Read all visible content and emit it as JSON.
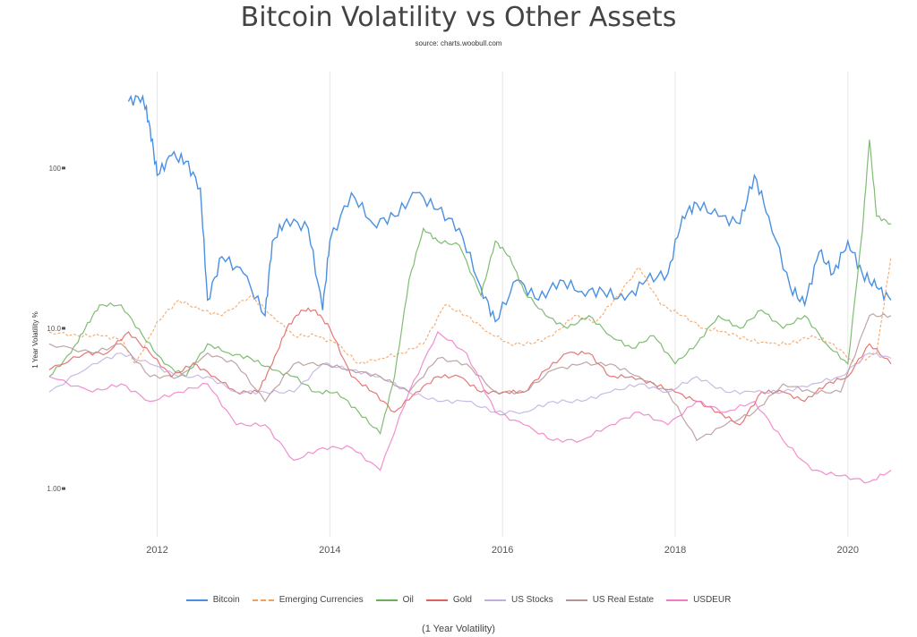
{
  "title": "Bitcoin Volatility vs Other Assets",
  "subtitle": "source: charts.woobull.com",
  "chart_data": {
    "type": "line",
    "title": "Bitcoin Volatility vs Other Assets",
    "subtitle": "source: charts.woobull.com",
    "xlabel": "(1 Year Volatility)",
    "ylabel": "1 Year Volatility %",
    "yscale": "log",
    "ylim": [
      0.5,
      400
    ],
    "xlim": [
      "2010-10",
      "2020-07"
    ],
    "x_tick_labels": [
      "2012",
      "2014",
      "2016",
      "2018",
      "2020"
    ],
    "y_tick_labels": [
      "1.00",
      "10.0",
      "100"
    ],
    "grid": "vertical",
    "legend_position": "bottom",
    "series": [
      {
        "name": "Bitcoin",
        "color": "#4a90e2",
        "dash": "solid",
        "x": [
          "2011-09",
          "2011-11",
          "2011-12",
          "2012-01",
          "2012-03",
          "2012-05",
          "2012-07",
          "2012-08",
          "2012-10",
          "2013-01",
          "2013-04",
          "2013-05",
          "2013-07",
          "2013-10",
          "2013-12",
          "2014-01",
          "2014-04",
          "2014-07",
          "2014-10",
          "2015-01",
          "2015-04",
          "2015-07",
          "2015-10",
          "2015-12",
          "2016-03",
          "2016-06",
          "2016-09",
          "2016-12",
          "2017-03",
          "2017-06",
          "2017-09",
          "2017-12",
          "2018-02",
          "2018-04",
          "2018-07",
          "2018-10",
          "2018-12",
          "2019-02",
          "2019-05",
          "2019-07",
          "2019-09",
          "2019-11",
          "2020-01",
          "2020-03",
          "2020-05",
          "2020-07"
        ],
        "values": [
          260,
          280,
          180,
          90,
          120,
          110,
          75,
          15,
          28,
          22,
          12,
          35,
          48,
          42,
          13,
          35,
          70,
          45,
          50,
          70,
          55,
          42,
          18,
          11,
          20,
          15,
          20,
          17,
          17,
          15,
          20,
          22,
          50,
          60,
          50,
          45,
          90,
          50,
          18,
          14,
          30,
          22,
          35,
          22,
          18,
          15
        ]
      },
      {
        "name": "Emerging Currencies",
        "color": "#f5a05a",
        "dash": "dashed",
        "x": [
          "2010-10",
          "2011-02",
          "2011-05",
          "2011-08",
          "2011-10",
          "2012-01",
          "2012-04",
          "2012-07",
          "2012-10",
          "2013-02",
          "2013-05",
          "2013-08",
          "2013-11",
          "2014-02",
          "2014-05",
          "2014-08",
          "2014-11",
          "2015-02",
          "2015-05",
          "2015-08",
          "2015-11",
          "2016-02",
          "2016-05",
          "2016-08",
          "2016-11",
          "2017-02",
          "2017-05",
          "2017-08",
          "2017-11",
          "2018-02",
          "2018-05",
          "2018-08",
          "2018-11",
          "2019-02",
          "2019-05",
          "2019-08",
          "2019-11",
          "2020-02",
          "2020-05",
          "2020-07"
        ],
        "values": [
          9.5,
          9,
          9,
          8.5,
          6,
          11,
          15,
          13,
          12,
          16,
          12,
          9,
          9,
          8,
          6,
          6.5,
          7,
          8,
          14,
          12,
          9.5,
          8,
          8,
          9,
          12,
          11,
          16,
          24,
          14,
          12,
          10,
          9.5,
          8.5,
          8,
          8,
          9,
          8,
          6,
          7,
          28
        ]
      },
      {
        "name": "Oil",
        "color": "#6ab05a",
        "dash": "solid",
        "x": [
          "2010-10",
          "2011-01",
          "2011-03",
          "2011-05",
          "2011-08",
          "2011-11",
          "2012-02",
          "2012-05",
          "2012-08",
          "2012-11",
          "2013-02",
          "2013-05",
          "2013-08",
          "2013-11",
          "2014-02",
          "2014-05",
          "2014-08",
          "2014-10",
          "2014-12",
          "2015-02",
          "2015-04",
          "2015-07",
          "2015-10",
          "2015-12",
          "2016-02",
          "2016-04",
          "2016-07",
          "2016-10",
          "2017-01",
          "2017-04",
          "2017-07",
          "2017-10",
          "2018-01",
          "2018-04",
          "2018-07",
          "2018-10",
          "2019-01",
          "2019-04",
          "2019-07",
          "2019-10",
          "2020-01",
          "2020-03",
          "2020-04",
          "2020-05",
          "2020-07"
        ],
        "values": [
          5,
          7,
          10,
          14,
          14,
          9,
          6,
          5,
          8,
          7,
          6.5,
          5.5,
          5,
          4,
          4,
          3,
          2.2,
          5,
          20,
          42,
          35,
          33,
          16,
          35,
          28,
          17,
          12,
          10,
          12,
          9,
          7.5,
          9,
          6,
          8,
          12,
          10,
          13,
          10,
          12,
          8,
          6,
          40,
          150,
          50,
          45
        ]
      },
      {
        "name": "Gold",
        "color": "#e06060",
        "dash": "solid",
        "x": [
          "2010-10",
          "2011-03",
          "2011-06",
          "2011-09",
          "2011-12",
          "2012-03",
          "2012-06",
          "2012-09",
          "2012-12",
          "2013-03",
          "2013-05",
          "2013-07",
          "2013-09",
          "2013-11",
          "2014-01",
          "2014-04",
          "2014-07",
          "2014-10",
          "2015-01",
          "2015-04",
          "2015-07",
          "2015-10",
          "2016-01",
          "2016-04",
          "2016-07",
          "2016-10",
          "2017-01",
          "2017-04",
          "2017-07",
          "2017-10",
          "2018-01",
          "2018-04",
          "2018-07",
          "2018-10",
          "2019-01",
          "2019-04",
          "2019-07",
          "2019-10",
          "2020-01",
          "2020-04",
          "2020-07"
        ],
        "values": [
          5.5,
          7,
          7,
          9.5,
          7,
          5,
          6,
          5,
          4,
          4,
          6,
          10,
          13,
          13,
          10,
          5,
          4,
          3,
          4,
          5,
          5,
          4,
          4,
          4,
          5.5,
          7,
          7,
          5,
          5,
          4.5,
          4,
          3.5,
          3,
          2.5,
          4,
          4,
          3.5,
          4.5,
          5,
          8,
          6
        ]
      },
      {
        "name": "US Stocks",
        "color": "#c0aee0",
        "dash": "solid",
        "x": [
          "2010-10",
          "2011-04",
          "2011-08",
          "2011-12",
          "2012-04",
          "2012-08",
          "2012-12",
          "2013-04",
          "2013-08",
          "2013-12",
          "2014-04",
          "2014-08",
          "2014-12",
          "2015-04",
          "2015-08",
          "2015-12",
          "2016-04",
          "2016-08",
          "2016-12",
          "2017-04",
          "2017-08",
          "2017-12",
          "2018-04",
          "2018-08",
          "2018-12",
          "2019-04",
          "2019-08",
          "2019-12",
          "2020-04",
          "2020-07"
        ],
        "values": [
          4,
          6,
          7,
          6,
          5,
          5,
          4,
          4,
          4,
          6,
          5.5,
          5,
          4,
          3.5,
          3.5,
          3,
          3,
          3.5,
          3.5,
          4,
          4.5,
          4,
          5,
          4,
          4,
          4,
          4.5,
          5,
          7,
          6.5
        ]
      },
      {
        "name": "US Real Estate",
        "color": "#b49494",
        "dash": "solid",
        "x": [
          "2010-10",
          "2011-04",
          "2011-08",
          "2011-12",
          "2012-04",
          "2012-08",
          "2012-12",
          "2013-04",
          "2013-08",
          "2013-12",
          "2014-04",
          "2014-08",
          "2014-12",
          "2015-04",
          "2015-08",
          "2015-12",
          "2016-04",
          "2016-08",
          "2016-12",
          "2017-04",
          "2017-08",
          "2017-12",
          "2018-04",
          "2018-08",
          "2018-12",
          "2019-04",
          "2019-08",
          "2019-12",
          "2020-04",
          "2020-07"
        ],
        "values": [
          8,
          7,
          8,
          5,
          5,
          7,
          6,
          3.5,
          6,
          6,
          5.5,
          5,
          4,
          6.5,
          6,
          4,
          4,
          5.5,
          6,
          6,
          5,
          4,
          2,
          2.5,
          3,
          4.5,
          4,
          4,
          12,
          12
        ]
      },
      {
        "name": "USDEUR",
        "color": "#f07ac8",
        "dash": "solid",
        "x": [
          "2010-10",
          "2011-04",
          "2011-08",
          "2011-12",
          "2012-04",
          "2012-08",
          "2012-12",
          "2013-04",
          "2013-08",
          "2013-12",
          "2014-04",
          "2014-08",
          "2014-12",
          "2015-04",
          "2015-08",
          "2015-12",
          "2016-04",
          "2016-08",
          "2016-12",
          "2017-04",
          "2017-08",
          "2017-12",
          "2018-04",
          "2018-08",
          "2018-12",
          "2019-04",
          "2019-08",
          "2019-12",
          "2020-04",
          "2020-07"
        ],
        "values": [
          5,
          4,
          4.5,
          3.5,
          4,
          4.5,
          2.5,
          2.5,
          1.5,
          1.8,
          1.8,
          1.3,
          4,
          9.5,
          7,
          3,
          2.5,
          2,
          2,
          2.5,
          3,
          2.5,
          3.5,
          3,
          3.5,
          2,
          1.3,
          1.2,
          1.1,
          1.3
        ]
      }
    ]
  }
}
